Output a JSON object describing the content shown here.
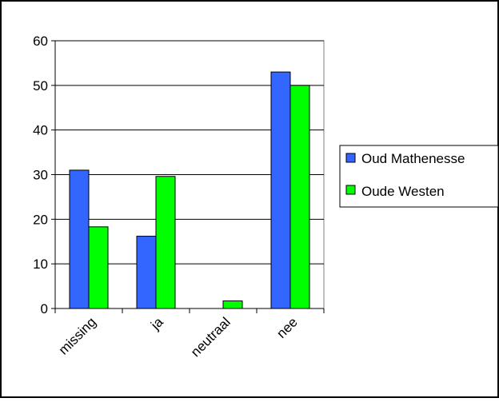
{
  "chart_data": {
    "type": "bar",
    "categories": [
      "missing",
      "ja",
      "neutraal",
      "nee"
    ],
    "series": [
      {
        "name": "Oud Mathenesse",
        "values": [
          31,
          16.2,
          0,
          53
        ],
        "color": "#3366ff"
      },
      {
        "name": "Oude Westen",
        "values": [
          18.3,
          29.6,
          1.7,
          50
        ],
        "color": "#00ff00"
      }
    ],
    "yticks": [
      0,
      10,
      20,
      30,
      40,
      50,
      60
    ],
    "ylim": [
      0,
      60
    ],
    "grid": true,
    "legend_position": "right",
    "plot_background": "#ffffff"
  }
}
